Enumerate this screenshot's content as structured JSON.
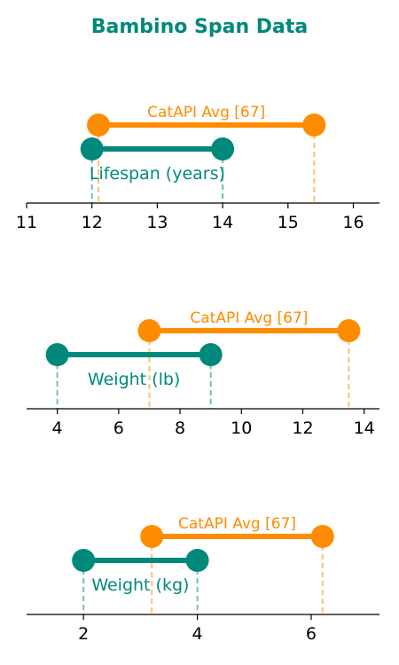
{
  "title": "Bambino Span Data",
  "colors": {
    "primary": "#00897b",
    "accent": "#ff8c00",
    "axis": "#000000"
  },
  "chart_data": [
    {
      "type": "range",
      "xlim": [
        11,
        16.4
      ],
      "xticks": [
        11,
        12,
        13,
        14,
        15,
        16
      ],
      "series": [
        {
          "name": "CatAPI Avg [67]",
          "values": [
            12.1,
            15.4
          ]
        },
        {
          "name": "Lifespan (years)",
          "values": [
            12,
            14
          ]
        }
      ]
    },
    {
      "type": "range",
      "xlim": [
        3,
        14.5
      ],
      "xticks": [
        4,
        6,
        8,
        10,
        12,
        14
      ],
      "series": [
        {
          "name": "CatAPI Avg [67]",
          "values": [
            7,
            13.5
          ]
        },
        {
          "name": "Weight (lb)",
          "values": [
            4,
            9
          ]
        }
      ]
    },
    {
      "type": "range",
      "xlim": [
        1,
        7.2
      ],
      "xticks": [
        2,
        4,
        6
      ],
      "series": [
        {
          "name": "CatAPI Avg [67]",
          "values": [
            3.2,
            6.2
          ]
        },
        {
          "name": "Weight (kg)",
          "values": [
            2,
            4
          ]
        }
      ]
    }
  ]
}
